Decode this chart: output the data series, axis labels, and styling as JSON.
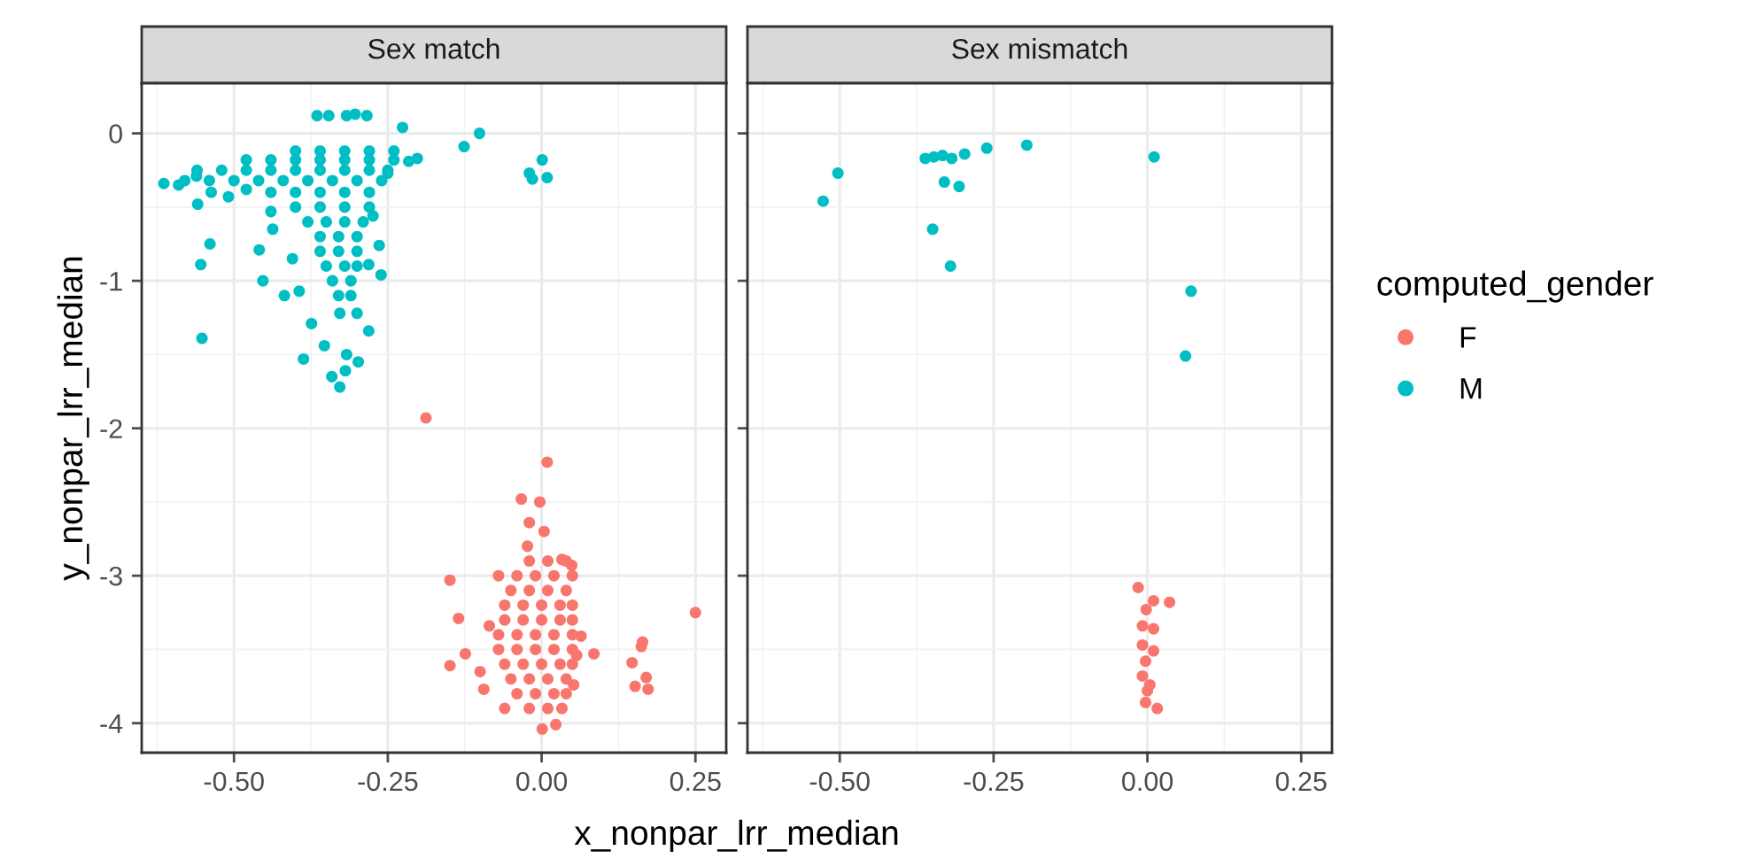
{
  "chart_data": [
    {
      "type": "scatter",
      "title": "Sex match",
      "xlabel": "x_nonpar_lrr_median",
      "ylabel": "y_nonpar_lrr_median",
      "legend_title": "computed_gender",
      "legend": "right",
      "grid": true,
      "marker": "circle",
      "xlim": [
        -0.65,
        0.3
      ],
      "ylim": [
        -4.2,
        0.34
      ],
      "xticks": [
        {
          "value": -0.5,
          "label": "-0.50"
        },
        {
          "value": -0.25,
          "label": "-0.25"
        },
        {
          "value": 0,
          "label": "0.00"
        },
        {
          "value": 0.25,
          "label": "0.25"
        }
      ],
      "yticks": [
        -4,
        -3,
        -2,
        -1,
        0
      ],
      "series": [
        {
          "name": "F",
          "color": "#f8766d",
          "x": [
            -0.188,
            0.009,
            -0.033,
            -0.003,
            -0.02,
            0.004,
            -0.023,
            -0.149,
            -0.07,
            -0.135,
            -0.124,
            -0.149,
            -0.1,
            -0.094,
            -0.085,
            -0.06,
            0.001,
            0.023,
            0.033,
            0.052,
            0.057,
            0.085,
            0.064,
            0.049,
            0.033,
            0.25,
            0.147,
            0.164,
            0.162,
            0.17,
            0.152,
            0.173,
            -0.02,
            0.01,
            0.04,
            -0.04,
            -0.01,
            0.02,
            0.05,
            -0.05,
            -0.02,
            0.01,
            0.04,
            -0.06,
            -0.03,
            0.0,
            0.03,
            0.05,
            -0.06,
            -0.03,
            0.0,
            0.03,
            0.05,
            -0.07,
            -0.04,
            -0.01,
            0.02,
            0.05,
            -0.07,
            -0.04,
            -0.01,
            0.02,
            0.05,
            -0.06,
            -0.03,
            0.0,
            0.03,
            0.05,
            -0.05,
            -0.02,
            0.01,
            0.04,
            -0.04,
            -0.01,
            0.02,
            0.04,
            -0.02,
            0.01
          ],
          "values": [
            -1.93,
            -2.23,
            -2.48,
            -2.5,
            -2.64,
            -2.7,
            -2.8,
            -3.03,
            -3.0,
            -3.29,
            -3.53,
            -3.61,
            -3.65,
            -3.77,
            -3.34,
            -3.9,
            -4.04,
            -4.01,
            -3.9,
            -3.74,
            -3.54,
            -3.53,
            -3.41,
            -2.93,
            -2.89,
            -3.25,
            -3.59,
            -3.45,
            -3.48,
            -3.69,
            -3.75,
            -3.77,
            -2.9,
            -2.9,
            -2.9,
            -3.0,
            -3.0,
            -3.0,
            -3.0,
            -3.1,
            -3.1,
            -3.1,
            -3.1,
            -3.2,
            -3.2,
            -3.2,
            -3.2,
            -3.2,
            -3.3,
            -3.3,
            -3.3,
            -3.3,
            -3.3,
            -3.4,
            -3.4,
            -3.4,
            -3.4,
            -3.4,
            -3.5,
            -3.5,
            -3.5,
            -3.5,
            -3.5,
            -3.6,
            -3.6,
            -3.6,
            -3.6,
            -3.6,
            -3.7,
            -3.7,
            -3.7,
            -3.7,
            -3.8,
            -3.8,
            -3.8,
            -3.8,
            -3.9,
            -3.9
          ]
        },
        {
          "name": "M",
          "color": "#00bfc4",
          "x": [
            -0.614,
            -0.59,
            -0.561,
            -0.559,
            -0.537,
            -0.509,
            -0.48,
            -0.539,
            -0.554,
            -0.552,
            -0.459,
            -0.453,
            -0.437,
            -0.44,
            -0.418,
            -0.394,
            -0.405,
            -0.387,
            -0.374,
            -0.353,
            -0.341,
            -0.328,
            -0.319,
            -0.317,
            -0.298,
            -0.281,
            -0.3,
            -0.328,
            -0.261,
            -0.281,
            -0.264,
            -0.274,
            -0.25,
            -0.216,
            -0.202,
            -0.226,
            -0.365,
            -0.346,
            -0.317,
            -0.303,
            -0.284,
            -0.126,
            -0.101,
            -0.02,
            0.001,
            0.009,
            -0.015,
            -0.4,
            -0.36,
            -0.32,
            -0.28,
            -0.24,
            -0.48,
            -0.44,
            -0.4,
            -0.36,
            -0.32,
            -0.28,
            -0.24,
            -0.56,
            -0.52,
            -0.48,
            -0.44,
            -0.4,
            -0.36,
            -0.32,
            -0.28,
            -0.25,
            -0.58,
            -0.54,
            -0.5,
            -0.46,
            -0.42,
            -0.38,
            -0.34,
            -0.3,
            -0.26,
            -0.44,
            -0.4,
            -0.36,
            -0.32,
            -0.28,
            -0.4,
            -0.36,
            -0.32,
            -0.28,
            -0.38,
            -0.35,
            -0.32,
            -0.29,
            -0.36,
            -0.33,
            -0.3,
            -0.36,
            -0.33,
            -0.3,
            -0.35,
            -0.32,
            -0.3,
            -0.34,
            -0.31,
            -0.33,
            -0.31
          ],
          "values": [
            -0.34,
            -0.35,
            -0.29,
            -0.48,
            -0.4,
            -0.43,
            -0.38,
            -0.75,
            -0.89,
            -1.39,
            -0.79,
            -1.0,
            -0.65,
            -0.53,
            -1.1,
            -1.07,
            -0.85,
            -1.53,
            -1.29,
            -1.44,
            -1.65,
            -1.72,
            -1.61,
            -1.5,
            -1.55,
            -1.34,
            -1.22,
            -1.22,
            -0.96,
            -0.89,
            -0.76,
            -0.56,
            -0.27,
            -0.19,
            -0.17,
            0.04,
            0.12,
            0.12,
            0.12,
            0.13,
            0.12,
            -0.09,
            0.0,
            -0.27,
            -0.18,
            -0.3,
            -0.31,
            -0.12,
            -0.12,
            -0.12,
            -0.12,
            -0.12,
            -0.18,
            -0.18,
            -0.18,
            -0.18,
            -0.18,
            -0.18,
            -0.18,
            -0.25,
            -0.25,
            -0.25,
            -0.25,
            -0.25,
            -0.25,
            -0.25,
            -0.25,
            -0.25,
            -0.32,
            -0.32,
            -0.32,
            -0.32,
            -0.32,
            -0.32,
            -0.32,
            -0.32,
            -0.32,
            -0.4,
            -0.4,
            -0.4,
            -0.4,
            -0.4,
            -0.5,
            -0.5,
            -0.5,
            -0.5,
            -0.6,
            -0.6,
            -0.6,
            -0.6,
            -0.7,
            -0.7,
            -0.7,
            -0.8,
            -0.8,
            -0.8,
            -0.9,
            -0.9,
            -0.9,
            -1.0,
            -1.0,
            -1.1,
            -1.1
          ]
        }
      ]
    },
    {
      "type": "scatter",
      "title": "Sex mismatch",
      "grid": true,
      "marker": "circle",
      "tick_labels": "x",
      "xlim": [
        -0.65,
        0.3
      ],
      "ylim": [
        -4.2,
        0.34
      ],
      "xticks": [
        {
          "value": -0.5,
          "label": "-0.50"
        },
        {
          "value": -0.25,
          "label": "-0.25"
        },
        {
          "value": 0,
          "label": "0.00"
        },
        {
          "value": 0.25,
          "label": "0.25"
        }
      ],
      "yticks": [
        -4,
        -3,
        -2,
        -1,
        0
      ],
      "series": [
        {
          "color": "#f8766d",
          "x": [
            -0.015,
            0.036,
            0.01,
            -0.002,
            -0.008,
            0.01,
            -0.008,
            0.01,
            -0.003,
            -0.008,
            0.0,
            -0.003,
            0.016,
            0.004
          ],
          "values": [
            -3.08,
            -3.18,
            -3.17,
            -3.23,
            -3.34,
            -3.36,
            -3.47,
            -3.51,
            -3.58,
            -3.68,
            -3.78,
            -3.86,
            -3.9,
            -3.74
          ]
        },
        {
          "color": "#00bfc4",
          "x": [
            -0.527,
            -0.503,
            -0.361,
            -0.347,
            -0.333,
            -0.318,
            -0.297,
            -0.261,
            -0.196,
            -0.33,
            -0.306,
            -0.349,
            -0.32,
            0.011,
            0.071,
            0.062
          ],
          "values": [
            -0.46,
            -0.27,
            -0.17,
            -0.16,
            -0.15,
            -0.17,
            -0.14,
            -0.1,
            -0.08,
            -0.33,
            -0.36,
            -0.65,
            -0.9,
            -0.16,
            -1.07,
            -1.51
          ]
        }
      ]
    }
  ]
}
